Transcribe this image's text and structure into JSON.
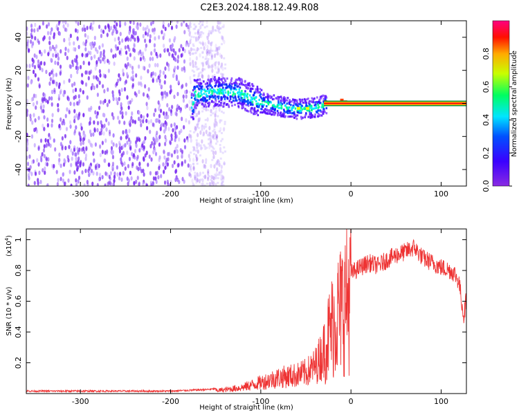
{
  "title": "C2E3.2024.188.12.49.R08",
  "chart_data": [
    {
      "type": "heatmap",
      "xlabel": "Height of straight line (km)",
      "ylabel": "Frequency (Hz)",
      "xlim": [
        -360,
        128
      ],
      "ylim": [
        -50,
        50
      ],
      "xticks": [
        -300,
        -200,
        -100,
        0,
        100
      ],
      "yticks": [
        -40,
        -20,
        0,
        20,
        40
      ],
      "colorbar": {
        "label": "Normalized spectral amplitude",
        "range": [
          0,
          1
        ],
        "ticks": [
          0.0,
          0.2,
          0.4,
          0.6,
          0.8
        ],
        "colormap": [
          "#8a2be2",
          "#0000ff",
          "#00ffff",
          "#00ff00",
          "#ffff00",
          "#ff0000",
          "#ff0080"
        ]
      },
      "features": {
        "noise_region_x": [
          -360,
          -150
        ],
        "signal_track": [
          {
            "x": -175,
            "y": 6
          },
          {
            "x": -150,
            "y": 8
          },
          {
            "x": -125,
            "y": 7
          },
          {
            "x": -100,
            "y": 1
          },
          {
            "x": -80,
            "y": -1
          },
          {
            "x": -60,
            "y": -3
          },
          {
            "x": -40,
            "y": -2
          },
          {
            "x": -25,
            "y": 1
          },
          {
            "x": -10,
            "y": 2
          },
          {
            "x": 0,
            "y": 0
          },
          {
            "x": 128,
            "y": 0
          }
        ],
        "peak_line_x": [
          -30,
          128
        ],
        "peak_line_y": 0
      }
    },
    {
      "type": "line",
      "xlabel": "Height of straight line (km)",
      "ylabel": "SNR (10 * v/v)",
      "yscale_label": "(x10",
      "yscale_exp": "4",
      "yscale_close": ")",
      "xlim": [
        -360,
        128
      ],
      "ylim": [
        0,
        1.07
      ],
      "xticks": [
        -300,
        -200,
        -100,
        0,
        100
      ],
      "yticks": [
        0.2,
        0.4,
        0.6,
        0.8,
        1.0
      ],
      "color": "#ee3333",
      "series": [
        {
          "x": [
            -360,
            -300,
            -250,
            -200,
            -160,
            -140,
            -120,
            -110,
            -100,
            -90,
            -80,
            -70,
            -60,
            -50,
            -40,
            -35,
            -30,
            -25,
            -20,
            -15,
            -10,
            -5,
            0,
            10,
            20,
            30,
            40,
            50,
            60,
            70,
            80,
            90,
            100,
            110,
            115,
            120,
            125,
            128
          ],
          "values": [
            0.01,
            0.01,
            0.01,
            0.01,
            0.02,
            0.03,
            0.05,
            0.07,
            0.09,
            0.11,
            0.13,
            0.14,
            0.15,
            0.17,
            0.22,
            0.28,
            0.35,
            0.45,
            0.55,
            0.62,
            0.68,
            0.75,
            0.78,
            0.82,
            0.85,
            0.83,
            0.87,
            0.9,
            0.92,
            0.95,
            0.88,
            0.85,
            0.82,
            0.8,
            0.78,
            0.72,
            0.5,
            0.62
          ]
        }
      ]
    }
  ]
}
